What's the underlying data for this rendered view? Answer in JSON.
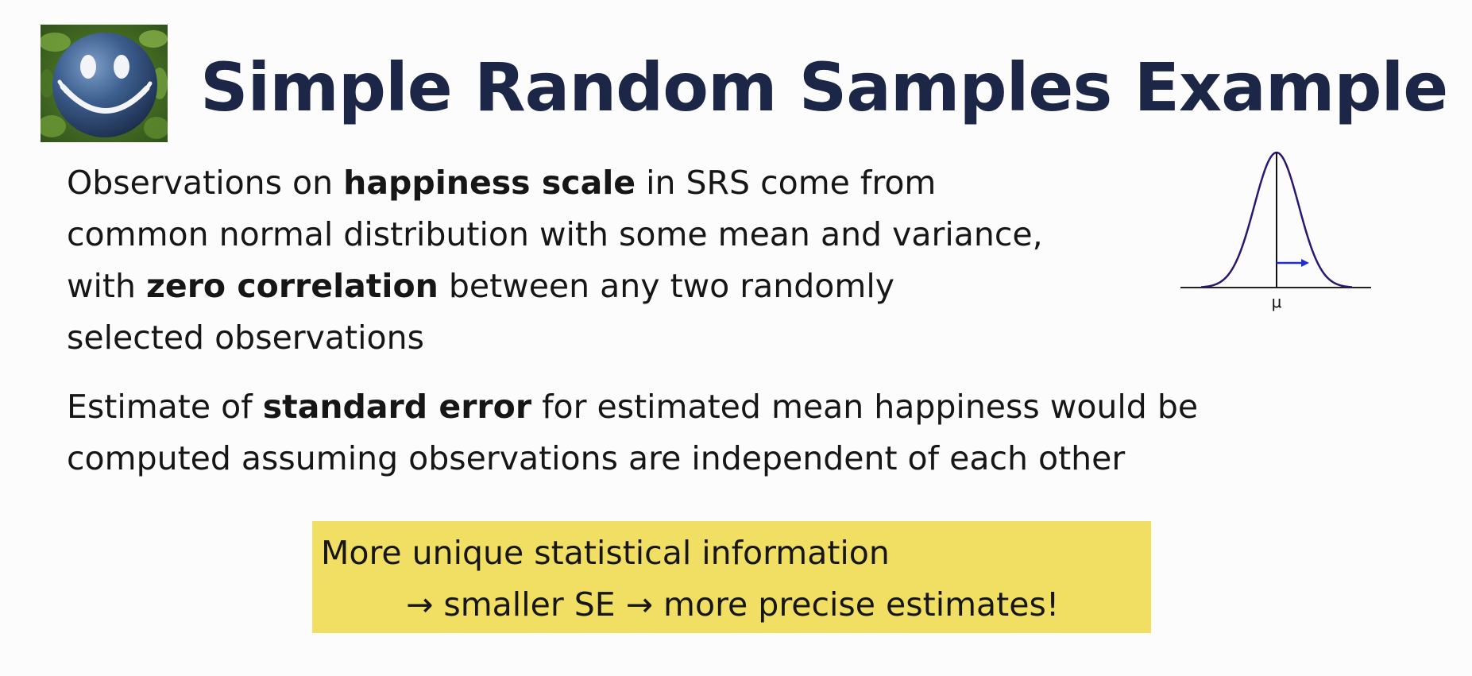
{
  "slide": {
    "title": "Simple Random Samples Example",
    "paragraph1": {
      "line1_a": "Observations on ",
      "line1_b": "happiness scale",
      "line1_c": " in SRS come from",
      "line2": "common normal distribution with some mean and variance,",
      "line3_a": "with ",
      "line3_b": "zero correlation",
      "line3_c": " between any two randomly",
      "line4": "selected observations"
    },
    "paragraph2": {
      "line1_a": "Estimate of ",
      "line1_b": "standard error",
      "line1_c": " for estimated mean happiness would  be",
      "line2": "computed assuming observations are independent of each other"
    },
    "figure": {
      "mean_label": "μ",
      "curve_color": "#2b1670",
      "arrow_color": "#2230c8"
    },
    "callout": {
      "line1": "More unique statistical information",
      "line2": "→ smaller SE → more precise estimates!",
      "background": "#f1df63"
    },
    "logo": {
      "icon": "smiley-ball-icon"
    }
  }
}
